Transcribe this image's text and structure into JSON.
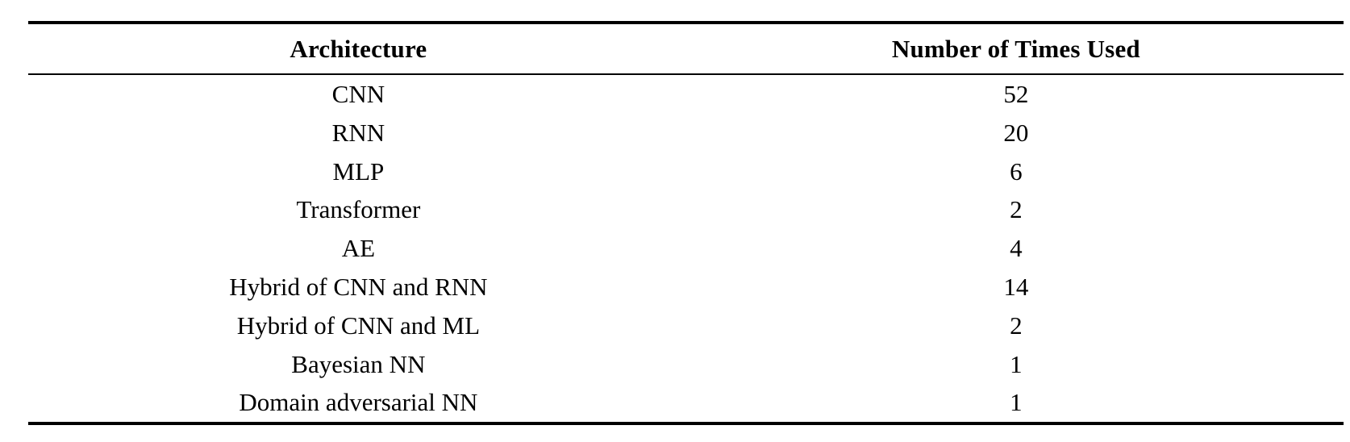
{
  "table": {
    "columns": [
      "Architecture",
      "Number of Times Used"
    ],
    "rows": [
      [
        "CNN",
        "52"
      ],
      [
        "RNN",
        "20"
      ],
      [
        "MLP",
        "6"
      ],
      [
        "Transformer",
        "2"
      ],
      [
        "AE",
        "4"
      ],
      [
        "Hybrid of CNN and RNN",
        "14"
      ],
      [
        "Hybrid of CNN and ML",
        "2"
      ],
      [
        "Bayesian NN",
        "1"
      ],
      [
        "Domain adversarial NN",
        "1"
      ]
    ]
  },
  "chart_data": {
    "type": "table",
    "title": "",
    "columns": [
      "Architecture",
      "Number of Times Used"
    ],
    "categories": [
      "CNN",
      "RNN",
      "MLP",
      "Transformer",
      "AE",
      "Hybrid of CNN and RNN",
      "Hybrid of CNN and ML",
      "Bayesian NN",
      "Domain adversarial NN"
    ],
    "values": [
      52,
      20,
      6,
      2,
      4,
      14,
      2,
      1,
      1
    ]
  },
  "colors": {
    "text": "#000000",
    "background": "#ffffff",
    "rule": "#000000"
  }
}
